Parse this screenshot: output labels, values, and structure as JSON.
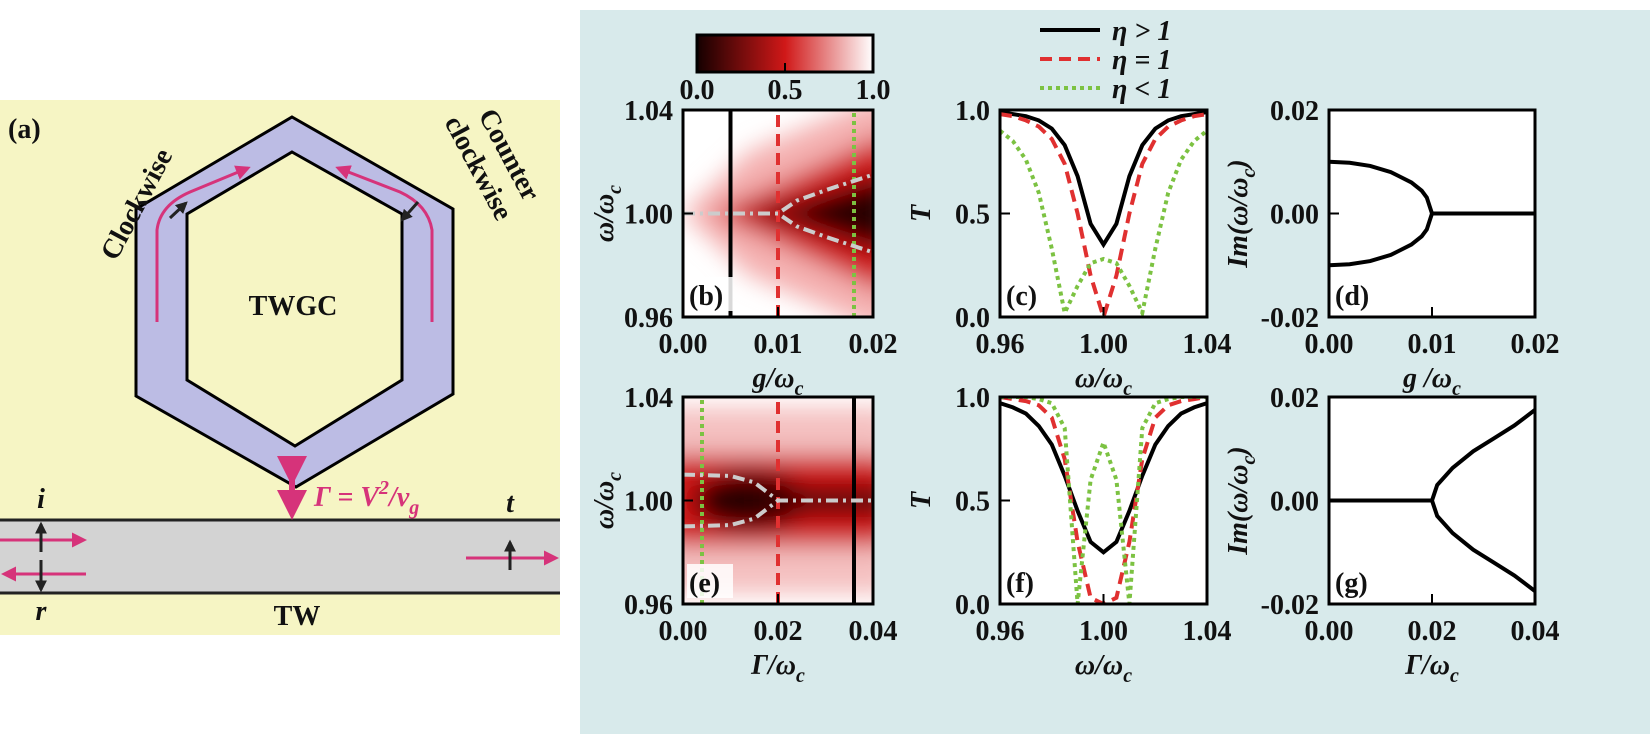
{
  "diagram": {
    "panel": "(a)",
    "clockwise": "Clockwise",
    "counter1": "Counter",
    "counter2": "clockwise",
    "cavity": "TWGC",
    "waveguide": "TW",
    "i": "i",
    "r": "r",
    "t": "t",
    "coupling": [
      "Γ = V",
      "2",
      "/v",
      "g"
    ]
  },
  "chart_data": [
    {
      "type": "heatmap",
      "panel": "(b)",
      "xlabel": [
        "g/ω",
        "c"
      ],
      "ylabel": [
        "ω/ω",
        "c"
      ],
      "xlim": [
        0,
        0.02
      ],
      "ylim": [
        0.96,
        1.04
      ],
      "xticks": [
        {
          "value": 0,
          "label": "0.00"
        },
        {
          "value": 0.01,
          "label": "0.01"
        },
        {
          "value": 0.02,
          "label": "0.02"
        }
      ],
      "yticks": [
        {
          "value": 0.96,
          "label": "0.96"
        },
        {
          "value": 1,
          "label": "1.00"
        },
        {
          "value": 1.04,
          "label": "1.04"
        }
      ],
      "colorbar": {
        "lim": [
          0,
          1
        ],
        "ticks": [
          {
            "value": 0,
            "label": "0.0"
          },
          {
            "value": 0.5,
            "label": "0.5"
          },
          {
            "value": 1,
            "label": "1.0"
          }
        ]
      },
      "series": [
        {
          "color": "#000000",
          "dash": "solid",
          "x": [
            0.005,
            0.005
          ],
          "values": [
            0.96,
            1.04
          ]
        },
        {
          "color": "#e03030",
          "dash": "dashed",
          "x": [
            0.01,
            0.01
          ],
          "values": [
            0.96,
            1.04
          ]
        },
        {
          "color": "#7cc242",
          "dash": "dotted",
          "x": [
            0.018,
            0.018
          ],
          "values": [
            0.96,
            1.04
          ]
        },
        {
          "color": "#cccccc",
          "dash": "dashdot",
          "x": [
            0,
            0.01,
            0.012,
            0.015,
            0.02
          ],
          "values": [
            1.0,
            1.0,
            1.005,
            1.009,
            1.015
          ]
        },
        {
          "color": "#cccccc",
          "dash": "dashdot",
          "x": [
            0,
            0.01,
            0.012,
            0.015,
            0.02
          ],
          "values": [
            1.0,
            1.0,
            0.995,
            0.991,
            0.985
          ]
        }
      ]
    },
    {
      "type": "line",
      "panel": "(c)",
      "xlabel": [
        "ω/ω",
        "c"
      ],
      "ylabel": [
        "T"
      ],
      "legend": "above",
      "xlim": [
        0.96,
        1.04
      ],
      "ylim": [
        0,
        1
      ],
      "xticks": [
        {
          "value": 0.96,
          "label": "0.96"
        },
        {
          "value": 1,
          "label": "1.00"
        },
        {
          "value": 1.04,
          "label": "1.04"
        }
      ],
      "yticks": [
        {
          "value": 0,
          "label": "0.0"
        },
        {
          "value": 0.5,
          "label": "0.5"
        },
        {
          "value": 1,
          "label": "1.0"
        }
      ],
      "series": [
        {
          "name": "η > 1",
          "color": "#000000",
          "dash": "solid",
          "x": [
            0.96,
            0.965,
            0.97,
            0.975,
            0.98,
            0.985,
            0.99,
            0.995,
            1.0,
            1.005,
            1.01,
            1.015,
            1.02,
            1.025,
            1.03,
            1.035,
            1.04
          ],
          "values": [
            0.99,
            0.98,
            0.97,
            0.95,
            0.91,
            0.83,
            0.68,
            0.45,
            0.35,
            0.45,
            0.68,
            0.83,
            0.91,
            0.95,
            0.97,
            0.98,
            0.99
          ]
        },
        {
          "name": "η = 1",
          "color": "#e03030",
          "dash": "dashed",
          "x": [
            0.96,
            0.965,
            0.97,
            0.975,
            0.98,
            0.985,
            0.99,
            0.995,
            1.0,
            1.005,
            1.01,
            1.015,
            1.02,
            1.025,
            1.03,
            1.035,
            1.04
          ],
          "values": [
            0.98,
            0.97,
            0.95,
            0.92,
            0.86,
            0.74,
            0.5,
            0.2,
            0.0,
            0.2,
            0.5,
            0.74,
            0.86,
            0.92,
            0.95,
            0.97,
            0.98
          ]
        },
        {
          "name": "η < 1",
          "color": "#7cc242",
          "dash": "dotted",
          "x": [
            0.96,
            0.965,
            0.97,
            0.975,
            0.98,
            0.985,
            0.99,
            0.995,
            1.0,
            1.005,
            1.01,
            1.015,
            1.02,
            1.025,
            1.03,
            1.035,
            1.04
          ],
          "values": [
            0.9,
            0.85,
            0.76,
            0.6,
            0.33,
            0.02,
            0.15,
            0.26,
            0.28,
            0.26,
            0.15,
            0.02,
            0.33,
            0.6,
            0.76,
            0.85,
            0.9
          ]
        }
      ]
    },
    {
      "type": "line",
      "panel": "(d)",
      "xlabel": [
        "g /ω",
        "c"
      ],
      "ylabel": [
        "Im(ω/ω",
        "c",
        ")"
      ],
      "xlim": [
        0,
        0.02
      ],
      "ylim": [
        -0.02,
        0.02
      ],
      "xticks": [
        {
          "value": 0,
          "label": "0.00"
        },
        {
          "value": 0.01,
          "label": "0.01"
        },
        {
          "value": 0.02,
          "label": "0.02"
        }
      ],
      "yticks": [
        {
          "value": -0.02,
          "label": "-0.02"
        },
        {
          "value": 0,
          "label": "0.00"
        },
        {
          "value": 0.02,
          "label": "0.02"
        }
      ],
      "series": [
        {
          "color": "#000000",
          "dash": "solid",
          "x": [
            0,
            0.002,
            0.004,
            0.006,
            0.008,
            0.009,
            0.0095,
            0.01,
            0.015,
            0.02
          ],
          "values": [
            0.01,
            0.0098,
            0.0092,
            0.008,
            0.006,
            0.0044,
            0.0031,
            0,
            0,
            0
          ]
        },
        {
          "color": "#000000",
          "dash": "solid",
          "x": [
            0,
            0.002,
            0.004,
            0.006,
            0.008,
            0.009,
            0.0095,
            0.01
          ],
          "values": [
            -0.01,
            -0.0098,
            -0.0092,
            -0.008,
            -0.006,
            -0.0044,
            -0.0031,
            0
          ]
        }
      ]
    },
    {
      "type": "heatmap",
      "panel": "(e)",
      "xlabel": [
        "Γ/ω",
        "c"
      ],
      "ylabel": [
        "ω/ω",
        "c"
      ],
      "xlim": [
        0,
        0.04
      ],
      "ylim": [
        0.96,
        1.04
      ],
      "xticks": [
        {
          "value": 0,
          "label": "0.00"
        },
        {
          "value": 0.02,
          "label": "0.02"
        },
        {
          "value": 0.04,
          "label": "0.04"
        }
      ],
      "yticks": [
        {
          "value": 0.96,
          "label": "0.96"
        },
        {
          "value": 1,
          "label": "1.00"
        },
        {
          "value": 1.04,
          "label": "1.04"
        }
      ],
      "series": [
        {
          "color": "#7cc242",
          "dash": "dotted",
          "x": [
            0.004,
            0.004
          ],
          "values": [
            0.96,
            1.04
          ]
        },
        {
          "color": "#e03030",
          "dash": "dashed",
          "x": [
            0.02,
            0.02
          ],
          "values": [
            0.96,
            1.04
          ]
        },
        {
          "color": "#000000",
          "dash": "solid",
          "x": [
            0.036,
            0.036
          ],
          "values": [
            0.96,
            1.04
          ]
        },
        {
          "color": "#cccccc",
          "dash": "dashdot",
          "x": [
            0,
            0.01,
            0.015,
            0.02,
            0.04
          ],
          "values": [
            1.01,
            1.0095,
            1.007,
            1.0,
            1.0
          ]
        },
        {
          "color": "#cccccc",
          "dash": "dashdot",
          "x": [
            0,
            0.01,
            0.015,
            0.02
          ],
          "values": [
            0.99,
            0.9905,
            0.993,
            1.0
          ]
        }
      ]
    },
    {
      "type": "line",
      "panel": "(f)",
      "xlabel": [
        "ω/ω",
        "c"
      ],
      "ylabel": [
        "T"
      ],
      "xlim": [
        0.96,
        1.04
      ],
      "ylim": [
        0,
        1
      ],
      "xticks": [
        {
          "value": 0.96,
          "label": "0.96"
        },
        {
          "value": 1,
          "label": "1.00"
        },
        {
          "value": 1.04,
          "label": "1.04"
        }
      ],
      "yticks": [
        {
          "value": 0,
          "label": "0.0"
        },
        {
          "value": 0.5,
          "label": "0.5"
        },
        {
          "value": 1,
          "label": "1.0"
        }
      ],
      "series": [
        {
          "color": "#000000",
          "dash": "solid",
          "x": [
            0.96,
            0.965,
            0.97,
            0.975,
            0.98,
            0.985,
            0.99,
            0.995,
            1.0,
            1.005,
            1.01,
            1.015,
            1.02,
            1.025,
            1.03,
            1.035,
            1.04
          ],
          "values": [
            0.97,
            0.95,
            0.92,
            0.86,
            0.77,
            0.62,
            0.45,
            0.3,
            0.25,
            0.3,
            0.45,
            0.62,
            0.77,
            0.86,
            0.92,
            0.95,
            0.97
          ]
        },
        {
          "color": "#e03030",
          "dash": "dashed",
          "x": [
            0.96,
            0.965,
            0.97,
            0.975,
            0.98,
            0.985,
            0.99,
            0.995,
            1.0,
            1.005,
            1.01,
            1.015,
            1.02,
            1.025,
            1.03,
            1.035,
            1.04
          ],
          "values": [
            1.0,
            0.99,
            0.98,
            0.96,
            0.9,
            0.7,
            0.3,
            0.03,
            0.0,
            0.03,
            0.3,
            0.7,
            0.9,
            0.96,
            0.98,
            0.99,
            1.0
          ]
        },
        {
          "color": "#7cc242",
          "dash": "dotted",
          "x": [
            0.96,
            0.965,
            0.97,
            0.975,
            0.98,
            0.985,
            0.99,
            0.995,
            1.0,
            1.005,
            1.01,
            1.015,
            1.02,
            1.025,
            1.03,
            1.035,
            1.04
          ],
          "values": [
            1.0,
            1.0,
            1.0,
            0.99,
            0.97,
            0.85,
            0.0,
            0.6,
            0.78,
            0.6,
            0.0,
            0.85,
            0.97,
            0.99,
            1.0,
            1.0,
            1.0
          ]
        }
      ]
    },
    {
      "type": "line",
      "panel": "(g)",
      "xlabel": [
        "Γ/ω",
        "c"
      ],
      "ylabel": [
        "Im(ω/ω",
        "c",
        ")"
      ],
      "xlim": [
        0,
        0.04
      ],
      "ylim": [
        -0.02,
        0.02
      ],
      "xticks": [
        {
          "value": 0,
          "label": "0.00"
        },
        {
          "value": 0.02,
          "label": "0.02"
        },
        {
          "value": 0.04,
          "label": "0.04"
        }
      ],
      "yticks": [
        {
          "value": -0.02,
          "label": "-0.02"
        },
        {
          "value": 0,
          "label": "0.00"
        },
        {
          "value": 0.02,
          "label": "0.02"
        }
      ],
      "series": [
        {
          "color": "#000000",
          "dash": "solid",
          "x": [
            0,
            0.01,
            0.02,
            0.021,
            0.024,
            0.028,
            0.032,
            0.036,
            0.04
          ],
          "values": [
            0,
            0,
            0,
            0.003,
            0.0063,
            0.0095,
            0.012,
            0.0145,
            0.0175
          ]
        },
        {
          "color": "#000000",
          "dash": "solid",
          "x": [
            0.02,
            0.021,
            0.024,
            0.028,
            0.032,
            0.036,
            0.04
          ],
          "values": [
            0,
            -0.003,
            -0.0063,
            -0.0095,
            -0.012,
            -0.0145,
            -0.0175
          ]
        }
      ]
    }
  ]
}
